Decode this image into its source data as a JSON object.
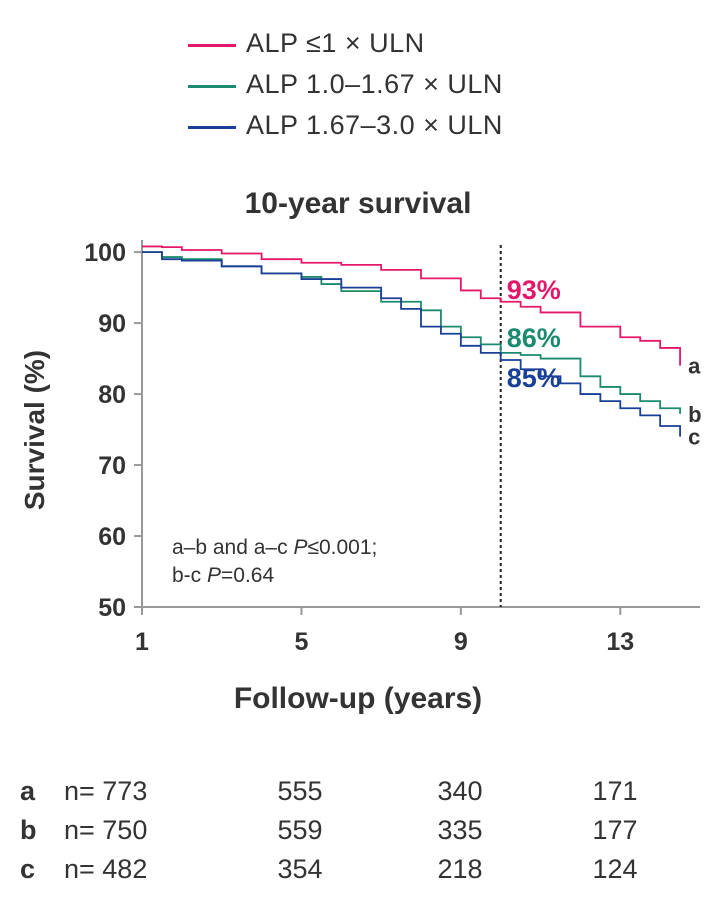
{
  "legend": [
    {
      "label": "ALP ≤1 × ULN",
      "color": "#e3186a"
    },
    {
      "label": "ALP 1.0–1.67 × ULN",
      "color": "#1b8a6f"
    },
    {
      "label": "ALP 1.67–3.0 × ULN",
      "color": "#1a3f96"
    }
  ],
  "chart_data": {
    "type": "line",
    "title": "10-year survival",
    "xlabel": "Follow-up (years)",
    "ylabel": "Survival (%)",
    "xlim": [
      1,
      15
    ],
    "ylim": [
      50,
      101
    ],
    "xticks": [
      "1",
      "5",
      "9",
      "13"
    ],
    "yticks": [
      "50",
      "60",
      "70",
      "80",
      "90",
      "100"
    ],
    "reference_line_x": 10,
    "annotation": {
      "line1_plain": "a–b and a–c ",
      "line1_italic": "P",
      "line1_rest": "≤0.001;",
      "line2_plain": "b-c ",
      "line2_italic": "P",
      "line2_rest": "=0.64"
    },
    "series": [
      {
        "label": "a",
        "color": "#e3186a",
        "value_at_10y": "93%",
        "points": [
          [
            1,
            100.8
          ],
          [
            1.5,
            100.7
          ],
          [
            2,
            100.3
          ],
          [
            3,
            99.8
          ],
          [
            4,
            99.0
          ],
          [
            5,
            98.5
          ],
          [
            6,
            98.2
          ],
          [
            7,
            97.5
          ],
          [
            8,
            96.3
          ],
          [
            9,
            94.6
          ],
          [
            9.5,
            93.5
          ],
          [
            10,
            93.0
          ],
          [
            10.5,
            92.3
          ],
          [
            11,
            91.5
          ],
          [
            12,
            89.5
          ],
          [
            13,
            88.0
          ],
          [
            13.5,
            87.5
          ],
          [
            14,
            86.5
          ],
          [
            14.5,
            84.0
          ]
        ]
      },
      {
        "label": "b",
        "color": "#1b8a6f",
        "value_at_10y": "86%",
        "points": [
          [
            1,
            100
          ],
          [
            1.5,
            99.3
          ],
          [
            2,
            99.0
          ],
          [
            3,
            98.0
          ],
          [
            4,
            97.0
          ],
          [
            5,
            96.5
          ],
          [
            5.5,
            95.5
          ],
          [
            6,
            94.5
          ],
          [
            7,
            93.0
          ],
          [
            8,
            91.8
          ],
          [
            8.5,
            89.5
          ],
          [
            9,
            88.0
          ],
          [
            9.5,
            87.0
          ],
          [
            10,
            85.8
          ],
          [
            10.5,
            85.5
          ],
          [
            11,
            85.0
          ],
          [
            12,
            82.5
          ],
          [
            12.5,
            81.0
          ],
          [
            13,
            80.0
          ],
          [
            13.5,
            79.0
          ],
          [
            14,
            78.0
          ],
          [
            14.5,
            77.2
          ]
        ]
      },
      {
        "label": "c",
        "color": "#1a3f96",
        "value_at_10y": "85%",
        "points": [
          [
            1,
            100
          ],
          [
            1.5,
            99.0
          ],
          [
            2,
            98.8
          ],
          [
            3,
            98.0
          ],
          [
            4,
            97.0
          ],
          [
            5,
            96.2
          ],
          [
            6,
            95.0
          ],
          [
            7,
            93.5
          ],
          [
            7.5,
            92.0
          ],
          [
            8,
            89.5
          ],
          [
            8.5,
            88.5
          ],
          [
            9,
            86.8
          ],
          [
            9.5,
            85.8
          ],
          [
            10,
            84.8
          ],
          [
            10.5,
            83.5
          ],
          [
            11,
            82.5
          ],
          [
            11.5,
            81.5
          ],
          [
            12,
            80.0
          ],
          [
            12.5,
            79.0
          ],
          [
            13,
            78.0
          ],
          [
            13.5,
            77.0
          ],
          [
            14,
            75.5
          ],
          [
            14.5,
            74.0
          ]
        ]
      }
    ]
  },
  "risk_table": {
    "rows": [
      {
        "letter": "a",
        "n_label": "n= 773",
        "values": [
          "555",
          "340",
          "171"
        ]
      },
      {
        "letter": "b",
        "n_label": "n= 750",
        "values": [
          "559",
          "335",
          "177"
        ]
      },
      {
        "letter": "c",
        "n_label": "n= 482",
        "values": [
          "354",
          "218",
          "124"
        ]
      }
    ]
  }
}
